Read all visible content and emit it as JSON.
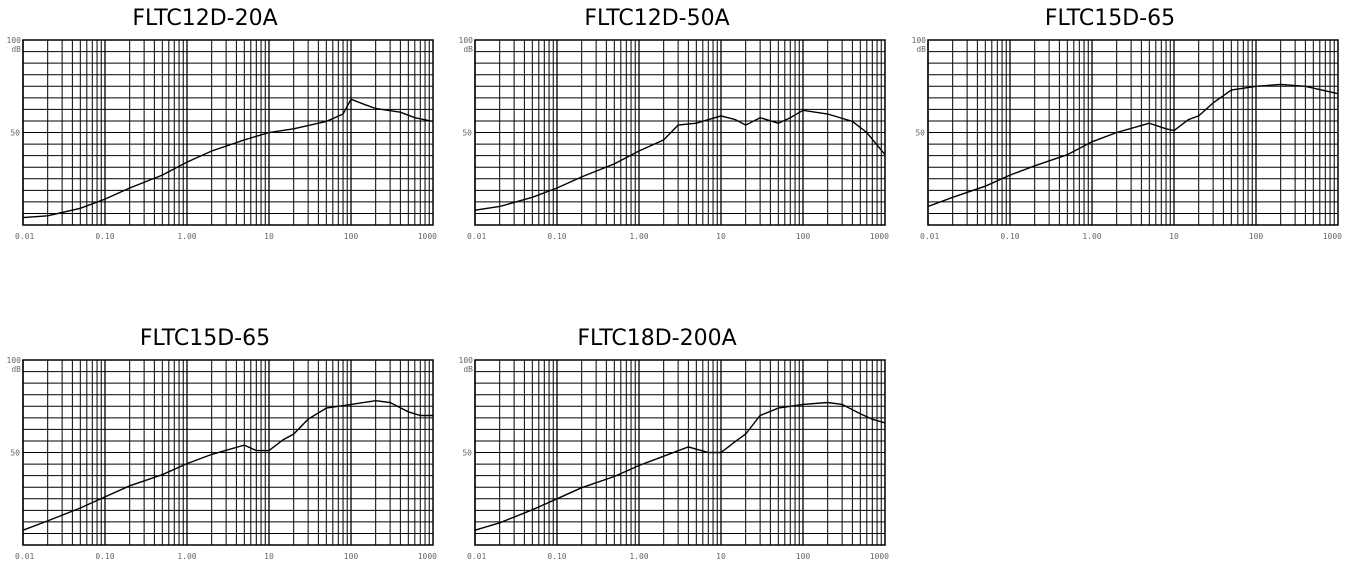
{
  "chart_data": [
    {
      "type": "line",
      "title": "FLTC12D-20A",
      "xscale": "log",
      "xlim": [
        0.01,
        1000
      ],
      "ylim": [
        0,
        100
      ],
      "xticklabels": [
        "0.01",
        "0.10",
        "1.00",
        "10",
        "100",
        "1000"
      ],
      "ytop": "100",
      "yunit": "dB",
      "ymid": "50",
      "grid": true,
      "x": [
        0.01,
        0.02,
        0.05,
        0.1,
        0.2,
        0.5,
        1,
        2,
        5,
        10,
        20,
        50,
        80,
        100,
        150,
        200,
        400,
        600,
        1000
      ],
      "y": [
        4,
        5,
        9,
        14,
        20,
        27,
        34,
        40,
        46,
        50,
        52,
        56,
        60,
        68,
        65,
        63,
        61,
        58,
        56
      ]
    },
    {
      "type": "line",
      "title": "FLTC12D-50A",
      "xscale": "log",
      "xlim": [
        0.01,
        1000
      ],
      "ylim": [
        0,
        100
      ],
      "xticklabels": [
        "0.01",
        "0.10",
        "1.00",
        "10",
        "100",
        "1000"
      ],
      "ytop": "100",
      "yunit": "dB",
      "ymid": "50",
      "grid": true,
      "x": [
        0.01,
        0.02,
        0.05,
        0.1,
        0.2,
        0.5,
        1,
        2,
        3,
        5,
        10,
        15,
        20,
        30,
        50,
        70,
        100,
        200,
        400,
        600,
        1000
      ],
      "y": [
        8,
        10,
        15,
        20,
        26,
        33,
        40,
        46,
        54,
        55,
        59,
        57,
        54,
        58,
        55,
        58,
        62,
        60,
        56,
        50,
        38
      ]
    },
    {
      "type": "line",
      "title": "FLTC15D-65",
      "xscale": "log",
      "xlim": [
        0.01,
        1000
      ],
      "ylim": [
        0,
        100
      ],
      "xticklabels": [
        "0.01",
        "0.10",
        "1.00",
        "10",
        "100",
        "1000"
      ],
      "ytop": "100",
      "yunit": "dB",
      "ymid": "50",
      "grid": true,
      "x": [
        0.01,
        0.02,
        0.05,
        0.1,
        0.2,
        0.5,
        1,
        2,
        5,
        8,
        10,
        15,
        20,
        30,
        50,
        100,
        200,
        400,
        1000
      ],
      "y": [
        10,
        15,
        21,
        27,
        32,
        38,
        45,
        50,
        55,
        52,
        51,
        57,
        59,
        66,
        73,
        75,
        76,
        75,
        71
      ]
    },
    {
      "type": "line",
      "title": "FLTC15D-65",
      "xscale": "log",
      "xlim": [
        0.01,
        1000
      ],
      "ylim": [
        0,
        100
      ],
      "xticklabels": [
        "0.01",
        "0.10",
        "1.00",
        "10",
        "100",
        "1000"
      ],
      "ytop": "100",
      "yunit": "dB",
      "ymid": "50",
      "grid": true,
      "x": [
        0.01,
        0.02,
        0.05,
        0.1,
        0.2,
        0.5,
        1,
        2,
        5,
        7,
        10,
        15,
        20,
        30,
        50,
        100,
        200,
        300,
        500,
        700,
        1000
      ],
      "y": [
        8,
        13,
        20,
        26,
        32,
        38,
        44,
        49,
        54,
        51,
        51,
        57,
        60,
        68,
        74,
        76,
        78,
        77,
        72,
        70,
        70
      ]
    },
    {
      "type": "line",
      "title": "FLTC18D-200A",
      "xscale": "log",
      "xlim": [
        0.01,
        1000
      ],
      "ylim": [
        0,
        100
      ],
      "xticklabels": [
        "0.01",
        "0.10",
        "1.00",
        "10",
        "100",
        "1000"
      ],
      "ytop": "100",
      "yunit": "dB",
      "ymid": "50",
      "grid": true,
      "x": [
        0.01,
        0.02,
        0.05,
        0.1,
        0.2,
        0.5,
        1,
        2,
        4,
        7,
        10,
        15,
        20,
        30,
        50,
        100,
        200,
        300,
        500,
        700,
        1000
      ],
      "y": [
        8,
        12,
        19,
        25,
        31,
        37,
        43,
        48,
        53,
        50,
        50,
        56,
        60,
        70,
        74,
        76,
        77,
        76,
        71,
        68,
        66
      ]
    }
  ]
}
